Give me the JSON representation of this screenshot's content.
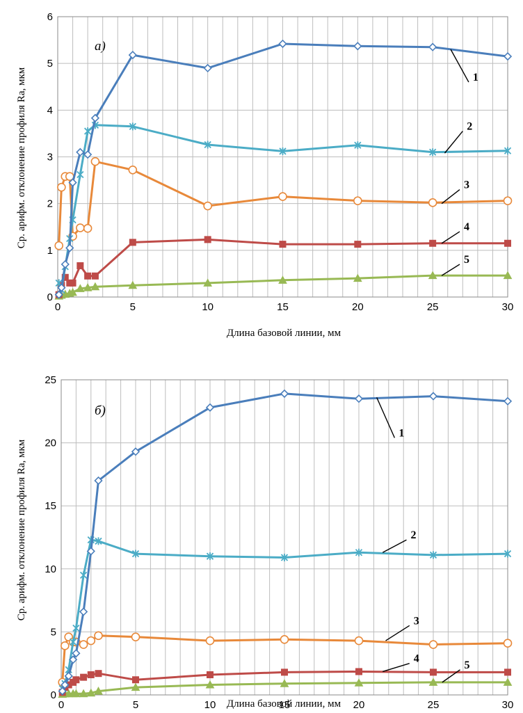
{
  "chart_data": [
    {
      "type": "line",
      "panel_label": "а)",
      "xlabel": "Длина базовой линии, мм",
      "ylabel": "Ср. арифм. отклонение профиля Ra, мкм",
      "xlim": [
        0,
        30
      ],
      "ylim": [
        0,
        6
      ],
      "x_ticks": [
        "0",
        "5",
        "10",
        "15",
        "20",
        "25",
        "30"
      ],
      "y_ticks": [
        "0",
        "1",
        "2",
        "3",
        "4",
        "5",
        "6"
      ],
      "grid": true,
      "series": [
        {
          "name": "1",
          "color": "#4a7ebb",
          "marker": "diamond",
          "x": [
            0.08,
            0.25,
            0.5,
            0.8,
            1.0,
            1.5,
            2.0,
            2.5,
            5,
            10,
            15,
            20,
            25,
            30
          ],
          "y": [
            0.05,
            0.2,
            0.7,
            1.05,
            2.45,
            3.1,
            3.05,
            3.83,
            5.18,
            4.9,
            5.42,
            5.37,
            5.35,
            5.15
          ]
        },
        {
          "name": "2",
          "color": "#4bacc6",
          "marker": "asterisk",
          "x": [
            0.08,
            0.25,
            0.5,
            0.8,
            1.0,
            1.5,
            2.0,
            2.5,
            5,
            10,
            15,
            20,
            25,
            30
          ],
          "y": [
            0.3,
            0.15,
            0.65,
            1.25,
            1.65,
            2.62,
            3.55,
            3.68,
            3.65,
            3.26,
            3.12,
            3.25,
            3.1,
            3.13
          ]
        },
        {
          "name": "3",
          "color": "#e8893a",
          "marker": "circle",
          "x": [
            0.08,
            0.25,
            0.5,
            0.8,
            1.0,
            1.5,
            2.0,
            2.5,
            5,
            10,
            15,
            20,
            25,
            30
          ],
          "y": [
            1.1,
            2.35,
            2.58,
            2.58,
            1.3,
            1.48,
            1.47,
            2.9,
            2.72,
            1.95,
            2.15,
            2.06,
            2.02,
            2.06
          ]
        },
        {
          "name": "4",
          "color": "#be4b48",
          "marker": "square",
          "x": [
            0.08,
            0.25,
            0.5,
            0.8,
            1.0,
            1.5,
            2.0,
            2.5,
            5,
            10,
            15,
            20,
            25,
            30
          ],
          "y": [
            0.05,
            0.25,
            0.42,
            0.3,
            0.3,
            0.67,
            0.45,
            0.45,
            1.17,
            1.23,
            1.13,
            1.13,
            1.15,
            1.15
          ]
        },
        {
          "name": "5",
          "color": "#98b954",
          "marker": "triangle",
          "x": [
            0.08,
            0.25,
            0.5,
            0.8,
            1.0,
            1.5,
            2.0,
            2.5,
            5,
            10,
            15,
            20,
            25,
            30
          ],
          "y": [
            0.02,
            0.04,
            0.06,
            0.08,
            0.1,
            0.18,
            0.2,
            0.22,
            0.25,
            0.3,
            0.36,
            0.4,
            0.46,
            0.46
          ]
        }
      ]
    },
    {
      "type": "line",
      "panel_label": "б)",
      "xlabel": "Длина базовой линии, мм",
      "ylabel": "Ср. арифм. отклонение профиля Ra, мкм",
      "xlim": [
        0,
        30
      ],
      "ylim": [
        0,
        25
      ],
      "x_ticks": [
        "0",
        "5",
        "10",
        "15",
        "20",
        "25",
        "30"
      ],
      "y_ticks": [
        "0",
        "5",
        "10",
        "15",
        "20",
        "25"
      ],
      "grid": true,
      "series": [
        {
          "name": "1",
          "color": "#4a7ebb",
          "marker": "diamond",
          "x": [
            0.08,
            0.25,
            0.5,
            0.8,
            1.0,
            1.5,
            2.0,
            2.5,
            5,
            10,
            15,
            20,
            25,
            30
          ],
          "y": [
            0.3,
            0.8,
            1.5,
            2.8,
            3.3,
            6.6,
            11.4,
            17.0,
            19.3,
            22.8,
            23.9,
            23.5,
            23.7,
            23.3
          ]
        },
        {
          "name": "2",
          "color": "#4bacc6",
          "marker": "asterisk",
          "x": [
            0.08,
            0.25,
            0.5,
            0.8,
            1.0,
            1.5,
            2.0,
            2.5,
            5,
            10,
            15,
            20,
            25,
            30
          ],
          "y": [
            0.5,
            0.9,
            2.0,
            4.2,
            5.3,
            9.5,
            12.3,
            12.2,
            11.2,
            11.0,
            10.9,
            11.3,
            11.1,
            11.2
          ]
        },
        {
          "name": "3",
          "color": "#e8893a",
          "marker": "circle",
          "x": [
            0.08,
            0.25,
            0.5,
            0.8,
            1.0,
            1.5,
            2.0,
            2.5,
            5,
            10,
            15,
            20,
            25,
            30
          ],
          "y": [
            1.0,
            3.9,
            4.6,
            4.2,
            4.2,
            4.0,
            4.3,
            4.7,
            4.6,
            4.3,
            4.4,
            4.3,
            4.0,
            4.1
          ]
        },
        {
          "name": "4",
          "color": "#be4b48",
          "marker": "square",
          "x": [
            0.08,
            0.25,
            0.5,
            0.8,
            1.0,
            1.5,
            2.0,
            2.5,
            5,
            10,
            15,
            20,
            25,
            30
          ],
          "y": [
            0.2,
            0.6,
            0.8,
            1.0,
            1.2,
            1.4,
            1.6,
            1.7,
            1.2,
            1.6,
            1.8,
            1.85,
            1.8,
            1.8
          ]
        },
        {
          "name": "5",
          "color": "#98b954",
          "marker": "triangle",
          "x": [
            0.08,
            0.25,
            0.5,
            0.8,
            1.0,
            1.5,
            2.0,
            2.5,
            5,
            10,
            15,
            20,
            25,
            30
          ],
          "y": [
            0.05,
            0.08,
            0.1,
            0.1,
            0.1,
            0.1,
            0.15,
            0.3,
            0.6,
            0.8,
            0.9,
            0.95,
            1.0,
            1.0
          ]
        }
      ]
    }
  ]
}
